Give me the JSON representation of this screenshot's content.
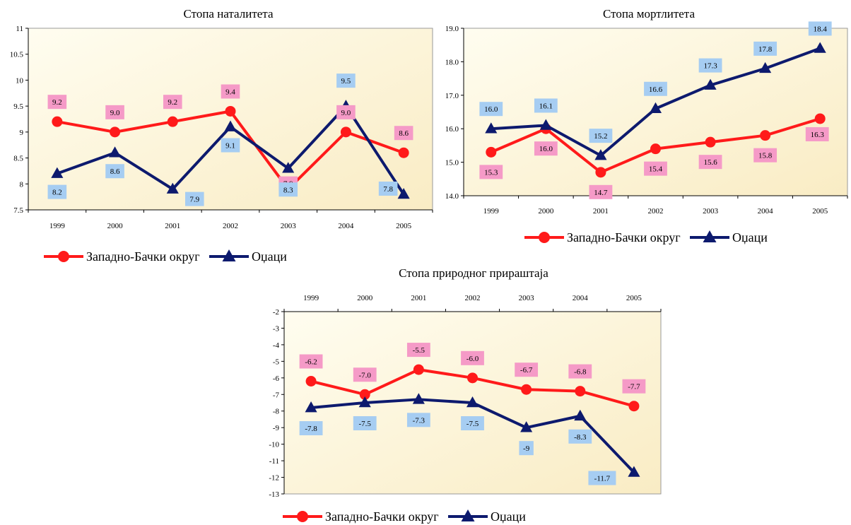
{
  "colors": {
    "red_series": "#ff1a1a",
    "blue_series": "#0d1a6e",
    "red_label_bg": "#f59ac7",
    "blue_label_bg": "#a6cdf2",
    "plot_bg_light": "#fffdf0",
    "plot_bg_warm": "#f9ecc4"
  },
  "icons": {
    "red_marker": "circle-marker-icon",
    "blue_marker": "triangle-marker-icon"
  },
  "chart_data": [
    {
      "type": "line",
      "title": "Стопа наталитета",
      "categories": [
        "1999",
        "2000",
        "2001",
        "2002",
        "2003",
        "2004",
        "2005"
      ],
      "ylim": [
        7.5,
        11
      ],
      "yticks": [
        "7.5",
        "8",
        "8.5",
        "9",
        "9.5",
        "10",
        "10.5",
        "11"
      ],
      "grid": false,
      "legend_position": "bottom",
      "series": [
        {
          "name": "Западно-Бачки округ",
          "marker": "circle",
          "values": [
            9.2,
            9.0,
            9.2,
            9.4,
            7.9,
            9.0,
            8.6
          ],
          "labels": [
            "9.2",
            "9.0",
            "9.2",
            "9.4",
            "7.9",
            "9.0",
            "8.6"
          ]
        },
        {
          "name": "Оџаци",
          "marker": "triangle",
          "values": [
            8.2,
            8.6,
            7.9,
            9.1,
            8.3,
            9.5,
            7.8
          ],
          "labels": [
            "8.2",
            "8.6",
            "7.9",
            "9.1",
            "8.3",
            "9.5",
            "7.8"
          ]
        }
      ]
    },
    {
      "type": "line",
      "title": "Стопа мортлитета",
      "categories": [
        "1999",
        "2000",
        "2001",
        "2002",
        "2003",
        "2004",
        "2005"
      ],
      "ylim": [
        14.0,
        19.0
      ],
      "yticks": [
        "14.0",
        "15.0",
        "16.0",
        "17.0",
        "18.0",
        "19.0"
      ],
      "grid": false,
      "legend_position": "bottom",
      "series": [
        {
          "name": "Западно-Бачки округ",
          "marker": "circle",
          "values": [
            15.3,
            16.0,
            14.7,
            15.4,
            15.6,
            15.8,
            16.3
          ],
          "labels": [
            "15.3",
            "16.0",
            "14.7",
            "15.4",
            "15.6",
            "15.8",
            "16.3"
          ]
        },
        {
          "name": "Оџаци",
          "marker": "triangle",
          "values": [
            16.0,
            16.1,
            15.2,
            16.6,
            17.3,
            17.8,
            18.4
          ],
          "labels": [
            "16.0",
            "16.1",
            "15.2",
            "16.6",
            "17.3",
            "17.8",
            "18.4"
          ]
        }
      ]
    },
    {
      "type": "line",
      "title": "Стопа природног прираштаја",
      "categories": [
        "1999",
        "2000",
        "2001",
        "2002",
        "2003",
        "2004",
        "2005"
      ],
      "ylim": [
        -13,
        -2
      ],
      "yticks": [
        "-13",
        "-12",
        "-11",
        "-10",
        "-9",
        "-8",
        "-7",
        "-6",
        "-5",
        "-4",
        "-3",
        "-2"
      ],
      "x_axis_position": "top",
      "grid": false,
      "legend_position": "bottom",
      "series": [
        {
          "name": "Западно-Бачки округ",
          "marker": "circle",
          "values": [
            -6.2,
            -7.0,
            -5.5,
            -6.0,
            -6.7,
            -6.8,
            -7.7
          ],
          "labels": [
            "-6.2",
            "-7.0",
            "-5.5",
            "-6.0",
            "-6.7",
            "-6.8",
            "-7.7"
          ]
        },
        {
          "name": "Оџаци",
          "marker": "triangle",
          "values": [
            -7.8,
            -7.5,
            -7.3,
            -7.5,
            -9.0,
            -8.3,
            -11.7
          ],
          "labels": [
            "-7.8",
            "-7.5",
            "-7.3",
            "-7.5",
            "-9",
            "-8.3",
            "-11.7"
          ]
        }
      ]
    }
  ]
}
